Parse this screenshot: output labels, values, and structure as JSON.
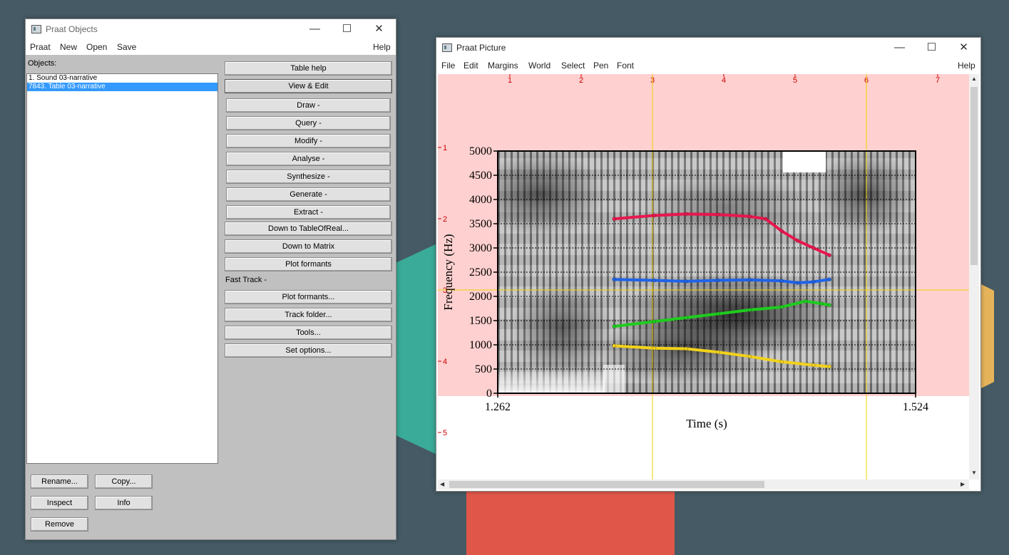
{
  "objects_window": {
    "title": "Praat Objects",
    "menu": [
      "Praat",
      "New",
      "Open",
      "Save"
    ],
    "help": "Help",
    "objects_label": "Objects:",
    "list": [
      "1. Sound 03-narrative",
      "7843. Table 03-narrative"
    ],
    "selected_index": 1,
    "buttons": [
      "Table help",
      "View & Edit",
      "Draw -",
      "Query -",
      "Modify -",
      "Analyse -",
      "Synthesize -",
      "Generate -",
      "Extract -",
      "Down to TableOfReal...",
      "Down to Matrix",
      "Plot formants"
    ],
    "fast_track_label": "Fast Track -",
    "fast_track_buttons": [
      "Plot formants...",
      "Track folder...",
      "Tools...",
      "Set options..."
    ],
    "bottom_buttons": [
      "Rename...",
      "Copy...",
      "Inspect",
      "Info",
      "Remove"
    ]
  },
  "picture_window": {
    "title": "Praat Picture",
    "menu": [
      "File",
      "Edit",
      "Margins",
      "World",
      "Select",
      "Pen",
      "Font"
    ],
    "help": "Help",
    "ruler_top": [
      "1",
      "2",
      "3",
      "4",
      "5",
      "6",
      "7"
    ],
    "ruler_left": [
      "1",
      "2",
      "3",
      "4",
      "5"
    ]
  },
  "chart_data": {
    "type": "spectrogram",
    "xlabel": "Time (s)",
    "ylabel": "Frequency (Hz)",
    "xlim": [
      1.262,
      1.524
    ],
    "ylim": [
      0,
      5000
    ],
    "x_tick_labels": [
      "1.262",
      "1.524"
    ],
    "y_ticks": [
      0,
      500,
      1000,
      1500,
      2000,
      2500,
      3000,
      3500,
      4000,
      4500,
      5000
    ],
    "grid": "dotted horizontal at 500 Hz steps",
    "series": [
      {
        "color": "#e8174e",
        "x": [
          1.335,
          1.36,
          1.38,
          1.4,
          1.42,
          1.43,
          1.44,
          1.45,
          1.46,
          1.47
        ],
        "y": [
          3600,
          3670,
          3700,
          3690,
          3650,
          3600,
          3350,
          3150,
          3000,
          2850
        ]
      },
      {
        "color": "#1f63e8",
        "x": [
          1.335,
          1.36,
          1.38,
          1.4,
          1.42,
          1.44,
          1.45,
          1.46,
          1.47
        ],
        "y": [
          2350,
          2330,
          2310,
          2330,
          2340,
          2320,
          2280,
          2300,
          2350
        ]
      },
      {
        "color": "#1ecc1e",
        "x": [
          1.335,
          1.36,
          1.38,
          1.4,
          1.42,
          1.44,
          1.455,
          1.465,
          1.47
        ],
        "y": [
          1380,
          1480,
          1560,
          1640,
          1720,
          1780,
          1900,
          1850,
          1820
        ]
      },
      {
        "color": "#f2d21a",
        "x": [
          1.335,
          1.36,
          1.38,
          1.4,
          1.42,
          1.44,
          1.46,
          1.47
        ],
        "y": [
          980,
          930,
          920,
          850,
          760,
          650,
          580,
          550
        ]
      }
    ]
  }
}
